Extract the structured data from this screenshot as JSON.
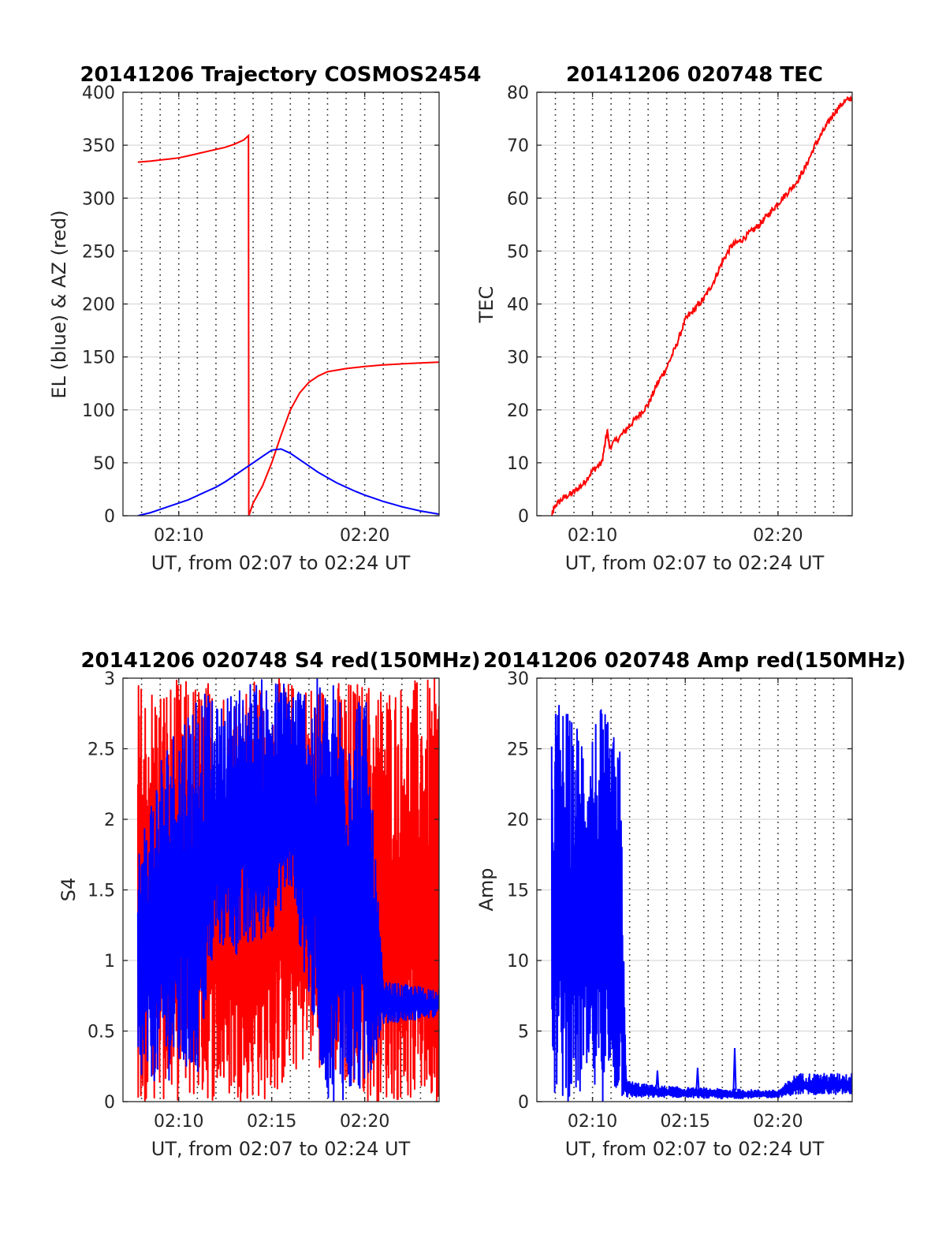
{
  "figure": {
    "background": "#ffffff"
  },
  "chart_data": [
    {
      "id": "trajectory",
      "type": "line",
      "title": "20141206 Trajectory COSMOS2454",
      "xlabel": "UT, from 02:07 to 02:24 UT",
      "ylabel": "EL (blue) & AZ (red)",
      "x_unit": "UT",
      "xlim": [
        "02:07:00",
        "02:24:00"
      ],
      "ylim": [
        0,
        400
      ],
      "yticks": [
        0,
        50,
        100,
        150,
        200,
        250,
        300,
        350,
        400
      ],
      "xticks": [
        "02:10",
        "02:20"
      ],
      "grid": "dotted vertical every 1 min, horizontal at y ticks",
      "series": [
        {
          "color": "#ff0000",
          "x": [
            "02:07:48",
            "02:08:30",
            "02:09:00",
            "02:09:30",
            "02:10:00",
            "02:10:30",
            "02:11:00",
            "02:11:30",
            "02:12:00",
            "02:12:30",
            "02:13:00",
            "02:13:30",
            "02:13:45",
            "02:13:46",
            "02:14:00",
            "02:14:30",
            "02:15:00",
            "02:15:30",
            "02:16:00",
            "02:16:30",
            "02:17:00",
            "02:17:30",
            "02:18:00",
            "02:19:00",
            "02:20:00",
            "02:21:00",
            "02:22:00",
            "02:23:00",
            "02:24:00"
          ],
          "values": [
            334,
            335,
            336,
            337,
            338,
            340,
            342,
            344,
            346,
            348,
            351,
            355,
            359,
            0,
            12,
            28,
            50,
            76,
            100,
            116,
            126,
            132,
            136,
            139,
            141,
            142.5,
            143.5,
            144.3,
            145
          ]
        },
        {
          "color": "#0000ff",
          "x": [
            "02:07:48",
            "02:08:30",
            "02:09:00",
            "02:09:30",
            "02:10:00",
            "02:10:30",
            "02:11:00",
            "02:11:30",
            "02:12:00",
            "02:12:30",
            "02:13:00",
            "02:13:30",
            "02:14:00",
            "02:14:30",
            "02:15:00",
            "02:15:30",
            "02:16:00",
            "02:16:30",
            "02:17:00",
            "02:17:30",
            "02:18:00",
            "02:18:30",
            "02:19:00",
            "02:19:30",
            "02:20:00",
            "02:20:30",
            "02:21:00",
            "02:21:30",
            "02:22:00",
            "02:22:30",
            "02:23:00",
            "02:23:30",
            "02:24:00"
          ],
          "values": [
            0,
            3,
            6,
            9,
            12,
            15,
            19,
            23,
            27,
            32,
            38,
            44,
            50,
            56,
            62,
            63,
            59,
            53,
            47,
            41,
            36,
            31,
            27,
            23,
            19.5,
            16.5,
            13.5,
            11,
            8.5,
            6.5,
            4.5,
            3,
            1.5
          ]
        }
      ]
    },
    {
      "id": "tec",
      "type": "line",
      "title": "20141206 020748 TEC",
      "xlabel": "UT, from 02:07 to 02:24 UT",
      "ylabel": "TEC",
      "x_unit": "UT",
      "xlim": [
        "02:07:00",
        "02:24:00"
      ],
      "ylim": [
        0,
        80
      ],
      "yticks": [
        0,
        10,
        20,
        30,
        40,
        50,
        60,
        70,
        80
      ],
      "xticks": [
        "02:10",
        "02:20"
      ],
      "grid": "dotted vertical every 1 min, horizontal at y ticks",
      "series": [
        {
          "color": "#ff0000",
          "x": [
            "02:07:48",
            "02:08:00",
            "02:08:30",
            "02:09:00",
            "02:09:30",
            "02:10:00",
            "02:10:30",
            "02:10:48",
            "02:10:55",
            "02:11:30",
            "02:12:00",
            "02:12:30",
            "02:13:00",
            "02:13:30",
            "02:14:00",
            "02:14:30",
            "02:15:00",
            "02:15:30",
            "02:16:00",
            "02:16:30",
            "02:17:00",
            "02:17:30",
            "02:18:00",
            "02:18:30",
            "02:19:00",
            "02:19:30",
            "02:20:00",
            "02:20:30",
            "02:21:00",
            "02:21:30",
            "02:22:00",
            "02:22:30",
            "02:23:00",
            "02:23:30",
            "02:24:00"
          ],
          "values": [
            0,
            2,
            3.5,
            4.5,
            6,
            8.5,
            10,
            16,
            13,
            15,
            17,
            19,
            21,
            25,
            28,
            32,
            37,
            39,
            41,
            44,
            48,
            51,
            52,
            53.5,
            55,
            57,
            59,
            61,
            63,
            66,
            70,
            73,
            76,
            78,
            79
          ]
        }
      ]
    },
    {
      "id": "s4",
      "type": "line",
      "title": "20141206 020748 S4 red(150MHz)",
      "xlabel": "UT, from 02:07 to 02:24 UT",
      "ylabel": "S4",
      "x_unit": "UT",
      "xlim": [
        "02:07:00",
        "02:24:00"
      ],
      "ylim": [
        0,
        3
      ],
      "yticks": [
        0,
        0.5,
        1,
        1.5,
        2,
        2.5,
        3
      ],
      "xticks": [
        "02:10",
        "02:15",
        "02:20"
      ],
      "grid": "dotted vertical every 1 min, horizontal at y ticks",
      "series": [
        {
          "color": "#ff0000",
          "x_range": [
            "02:07:48",
            "02:24:00"
          ],
          "envelope": [
            {
              "x": "02:07:48",
              "low": 0,
              "high": 3
            },
            {
              "x": "02:11:00",
              "low": 0,
              "high": 3
            },
            {
              "x": "02:15:00",
              "low": 0,
              "high": 3
            },
            {
              "x": "02:17:00",
              "low": 0.3,
              "high": 3
            },
            {
              "x": "02:20:00",
              "low": 0,
              "high": 3
            },
            {
              "x": "02:24:00",
              "low": 0,
              "high": 3
            }
          ]
        },
        {
          "color": "#0000ff",
          "x_range": [
            "02:07:48",
            "02:24:00"
          ],
          "envelope": [
            {
              "x": "02:07:48",
              "low": 0.1,
              "high": 1.8
            },
            {
              "x": "02:09:00",
              "low": 0.15,
              "high": 2.5
            },
            {
              "x": "02:11:00",
              "low": 0.15,
              "high": 3
            },
            {
              "x": "02:12:00",
              "low": 1.1,
              "high": 2.8
            },
            {
              "x": "02:13:30",
              "low": 1.0,
              "high": 3
            },
            {
              "x": "02:15:00",
              "low": 1.2,
              "high": 3
            },
            {
              "x": "02:16:00",
              "low": 1.5,
              "high": 3
            },
            {
              "x": "02:17:00",
              "low": 0.7,
              "high": 3
            },
            {
              "x": "02:18:00",
              "low": 0,
              "high": 3
            },
            {
              "x": "02:20:00",
              "low": 0,
              "high": 3
            },
            {
              "x": "02:21:00",
              "low": 0.55,
              "high": 0.85
            },
            {
              "x": "02:24:00",
              "low": 0.6,
              "high": 0.8
            }
          ]
        }
      ]
    },
    {
      "id": "amp",
      "type": "line",
      "title": "20141206 020748 Amp red(150MHz)",
      "xlabel": "UT, from 02:07 to 02:24 UT",
      "ylabel": "Amp",
      "x_unit": "UT",
      "xlim": [
        "02:07:00",
        "02:24:00"
      ],
      "ylim": [
        0,
        30
      ],
      "yticks": [
        0,
        5,
        10,
        15,
        20,
        25,
        30
      ],
      "xticks": [
        "02:10",
        "02:15",
        "02:20"
      ],
      "grid": "dotted vertical every 1 min, horizontal at y ticks",
      "series": [
        {
          "color": "#0000ff",
          "x_range": [
            "02:07:48",
            "02:24:00"
          ],
          "envelope": [
            {
              "x": "02:07:48",
              "low": 0,
              "high": 29.5
            },
            {
              "x": "02:09:00",
              "low": 0,
              "high": 27
            },
            {
              "x": "02:10:30",
              "low": 0,
              "high": 28
            },
            {
              "x": "02:11:30",
              "low": 0,
              "high": 25
            },
            {
              "x": "02:11:50",
              "low": 0.3,
              "high": 1.5
            },
            {
              "x": "02:13:00",
              "low": 0.3,
              "high": 1.2
            },
            {
              "x": "02:15:00",
              "low": 0.3,
              "high": 1.0
            },
            {
              "x": "02:17:00",
              "low": 0.2,
              "high": 0.9
            },
            {
              "x": "02:20:00",
              "low": 0.3,
              "high": 0.8
            },
            {
              "x": "02:21:00",
              "low": 0.5,
              "high": 2.0
            },
            {
              "x": "02:24:00",
              "low": 0.5,
              "high": 2.0
            }
          ],
          "spikes": [
            {
              "x": "02:13:30",
              "value": 2.2
            },
            {
              "x": "02:15:40",
              "value": 2.4
            },
            {
              "x": "02:17:40",
              "value": 3.8
            }
          ]
        }
      ]
    }
  ]
}
